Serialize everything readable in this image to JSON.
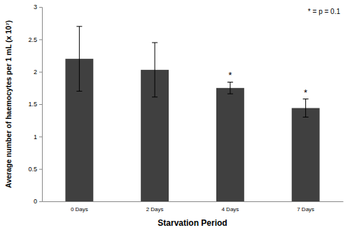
{
  "chart_data": {
    "type": "bar",
    "x_label": "Starvation Period",
    "y_label": "Average number of haemocytes per 1 mL (x 10⁷)",
    "categories": [
      "0 Days",
      "2 Days",
      "4 Days",
      "7 Days"
    ],
    "values": [
      2.2,
      2.03,
      1.75,
      1.44
    ],
    "errors": [
      0.5,
      0.42,
      0.09,
      0.14
    ],
    "color": "#404040",
    "ylim": [
      0,
      3
    ],
    "yticks": [
      0,
      0.5,
      1,
      1.5,
      2,
      2.5,
      3
    ],
    "grid": false,
    "annotations": [
      {
        "text": "* = p = 0.1"
      },
      {
        "text": "*",
        "category": "4 Days"
      },
      {
        "text": "*",
        "category": "7 Days"
      }
    ]
  }
}
